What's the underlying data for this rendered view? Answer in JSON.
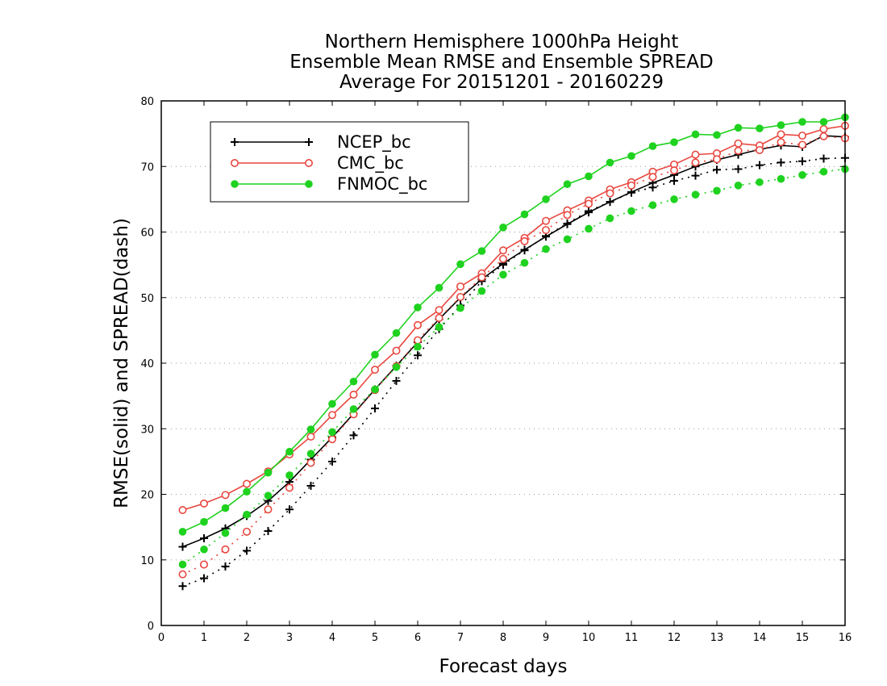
{
  "chart_data": {
    "type": "line",
    "title_lines": [
      "Northern Hemisphere 1000hPa Height",
      "Ensemble Mean RMSE and Ensemble SPREAD",
      "Average For 20151201 - 20160229"
    ],
    "xlabel": "Forecast days",
    "ylabel": "RMSE(solid) and SPREAD(dash)",
    "xlim": [
      0,
      16
    ],
    "ylim": [
      0,
      80
    ],
    "xticks": [
      0,
      1,
      2,
      3,
      4,
      5,
      6,
      7,
      8,
      9,
      10,
      11,
      12,
      13,
      14,
      15,
      16
    ],
    "yticks": [
      0,
      10,
      20,
      30,
      40,
      50,
      60,
      70,
      80
    ],
    "grid": true,
    "legend_position": "top-left",
    "x": [
      0.5,
      1,
      1.5,
      2,
      2.5,
      3,
      3.5,
      4,
      4.5,
      5,
      5.5,
      6,
      6.5,
      7,
      7.5,
      8,
      8.5,
      9,
      9.5,
      10,
      10.5,
      11,
      11.5,
      12,
      12.5,
      13,
      13.5,
      14,
      14.5,
      15,
      15.5,
      16
    ],
    "series": [
      {
        "name": "NCEP_bc",
        "color": "#000000",
        "marker": "plus",
        "rmse": [
          12.0,
          13.3,
          14.8,
          16.7,
          19.0,
          21.9,
          25.3,
          28.7,
          32.3,
          36.0,
          39.6,
          43.2,
          46.7,
          50.0,
          52.8,
          55.2,
          57.3,
          59.3,
          61.2,
          63.0,
          64.6,
          66.1,
          67.5,
          68.7,
          70.0,
          71.0,
          71.8,
          72.6,
          73.2,
          73.0,
          74.7,
          74.5
        ],
        "spread": [
          6.0,
          7.2,
          9.0,
          11.4,
          14.4,
          17.7,
          21.3,
          25.0,
          29.0,
          33.1,
          37.3,
          41.2,
          45.2,
          48.8,
          52.5,
          55.0,
          57.2,
          59.4,
          61.3,
          63.2,
          64.6,
          66.0,
          66.8,
          67.8,
          68.6,
          69.5,
          69.6,
          70.2,
          70.6,
          70.8,
          71.2,
          71.3
        ]
      },
      {
        "name": "CMC_bc",
        "color": "#e8473f",
        "marker": "circle-open",
        "rmse": [
          17.6,
          18.6,
          19.9,
          21.6,
          23.5,
          26.1,
          28.8,
          32.1,
          35.2,
          39.0,
          41.9,
          45.8,
          48.1,
          51.7,
          53.7,
          57.2,
          59.1,
          61.7,
          63.3,
          64.8,
          66.5,
          67.6,
          69.2,
          70.3,
          71.8,
          72.0,
          73.5,
          73.2,
          74.9,
          74.7,
          75.7,
          76.2
        ],
        "spread": [
          7.8,
          9.3,
          11.6,
          14.3,
          17.7,
          21.0,
          24.8,
          28.4,
          32.2,
          35.9,
          39.5,
          43.5,
          46.9,
          50.1,
          53.1,
          55.9,
          58.6,
          60.3,
          62.6,
          64.3,
          65.9,
          67.1,
          68.4,
          69.4,
          70.6,
          71.1,
          72.4,
          72.5,
          73.7,
          73.3,
          74.6,
          74.3
        ]
      },
      {
        "name": "FNMOC_bc",
        "color": "#1fd21f",
        "marker": "circle-filled",
        "rmse": [
          14.3,
          15.8,
          17.9,
          20.4,
          23.3,
          26.5,
          29.9,
          33.8,
          37.2,
          41.3,
          44.6,
          48.5,
          51.5,
          55.1,
          57.1,
          60.7,
          62.7,
          65.0,
          67.3,
          68.5,
          70.6,
          71.6,
          73.1,
          73.7,
          74.9,
          74.8,
          75.9,
          75.8,
          76.3,
          76.8,
          76.8,
          77.5
        ],
        "spread": [
          9.3,
          11.6,
          14.1,
          16.9,
          19.8,
          22.9,
          26.2,
          29.5,
          33.0,
          36.0,
          39.4,
          42.5,
          45.5,
          48.4,
          51.0,
          53.5,
          55.3,
          57.4,
          58.9,
          60.5,
          62.1,
          63.2,
          64.1,
          65.0,
          65.7,
          66.3,
          67.1,
          67.6,
          68.1,
          68.7,
          69.2,
          69.6
        ]
      }
    ]
  }
}
